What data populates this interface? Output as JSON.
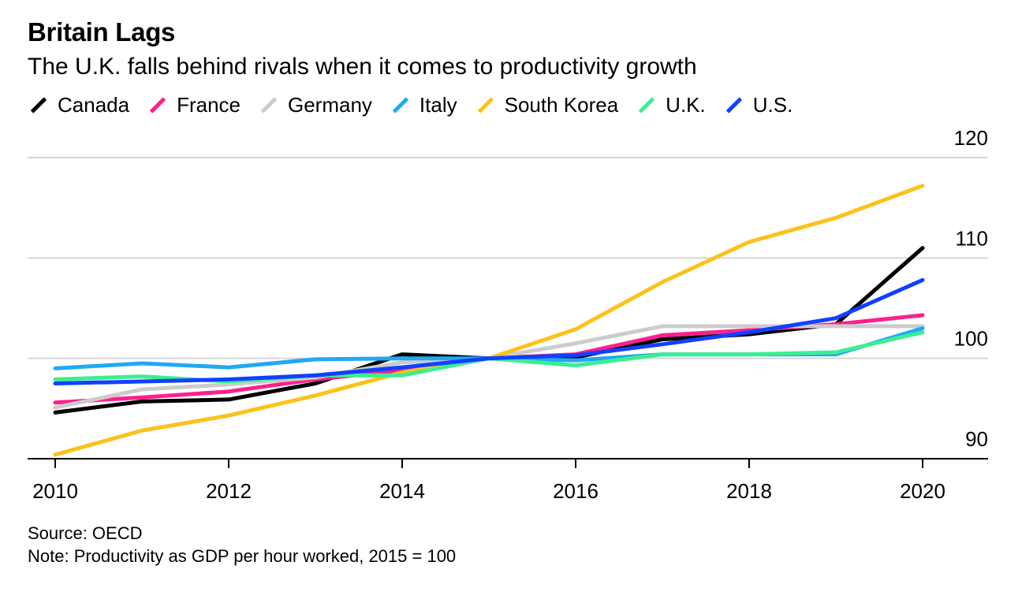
{
  "header": {
    "title": "Britain Lags",
    "subtitle": "The U.K. falls behind rivals when it comes to productivity growth"
  },
  "footer": {
    "source": "Source: OECD",
    "note": "Note: Productivity as GDP per hour worked, 2015 = 100"
  },
  "chart_data": {
    "type": "line",
    "title": "Britain Lags",
    "subtitle": "The U.K. falls behind rivals when it comes to productivity growth",
    "xlabel": "",
    "ylabel": "",
    "x": [
      2010,
      2011,
      2012,
      2013,
      2014,
      2015,
      2016,
      2017,
      2018,
      2019,
      2020
    ],
    "x_ticks": [
      "2010",
      "2012",
      "2014",
      "2016",
      "2018",
      "2020"
    ],
    "y_ticks": [
      "90",
      "100",
      "110",
      "120"
    ],
    "xlim": [
      2010,
      2020
    ],
    "ylim": [
      90,
      120
    ],
    "y_axis_side": "right",
    "grid": "horizontal",
    "legend_position": "top-left",
    "series": [
      {
        "name": "Canada",
        "color": "#000000",
        "values": [
          94.6,
          95.7,
          95.9,
          97.5,
          100.4,
          100.0,
          100.1,
          101.9,
          102.4,
          103.4,
          111.0
        ]
      },
      {
        "name": "France",
        "color": "#ff1f8e",
        "values": [
          95.6,
          96.1,
          96.7,
          97.9,
          98.8,
          100.0,
          100.4,
          102.3,
          102.8,
          103.4,
          104.3
        ]
      },
      {
        "name": "Germany",
        "color": "#cccccc",
        "values": [
          95.1,
          96.9,
          97.4,
          98.1,
          99.6,
          100.0,
          101.5,
          103.2,
          103.2,
          103.2,
          103.2
        ]
      },
      {
        "name": "Italy",
        "color": "#1fa9f5",
        "values": [
          99.0,
          99.5,
          99.1,
          99.9,
          100.0,
          100.0,
          99.8,
          100.4,
          100.4,
          100.4,
          103.0
        ]
      },
      {
        "name": "South Korea",
        "color": "#fbc21c",
        "values": [
          90.4,
          92.8,
          94.3,
          96.3,
          98.6,
          100.0,
          102.9,
          107.6,
          111.6,
          114.0,
          117.2
        ]
      },
      {
        "name": "U.K.",
        "color": "#3cee92",
        "values": [
          97.9,
          98.2,
          97.7,
          98.3,
          98.3,
          100.0,
          99.3,
          100.4,
          100.4,
          100.6,
          102.6
        ]
      },
      {
        "name": "U.S.",
        "color": "#1140ff",
        "values": [
          97.5,
          97.7,
          97.9,
          98.3,
          99.1,
          100.0,
          100.3,
          101.4,
          102.6,
          104.0,
          107.8
        ]
      }
    ]
  }
}
